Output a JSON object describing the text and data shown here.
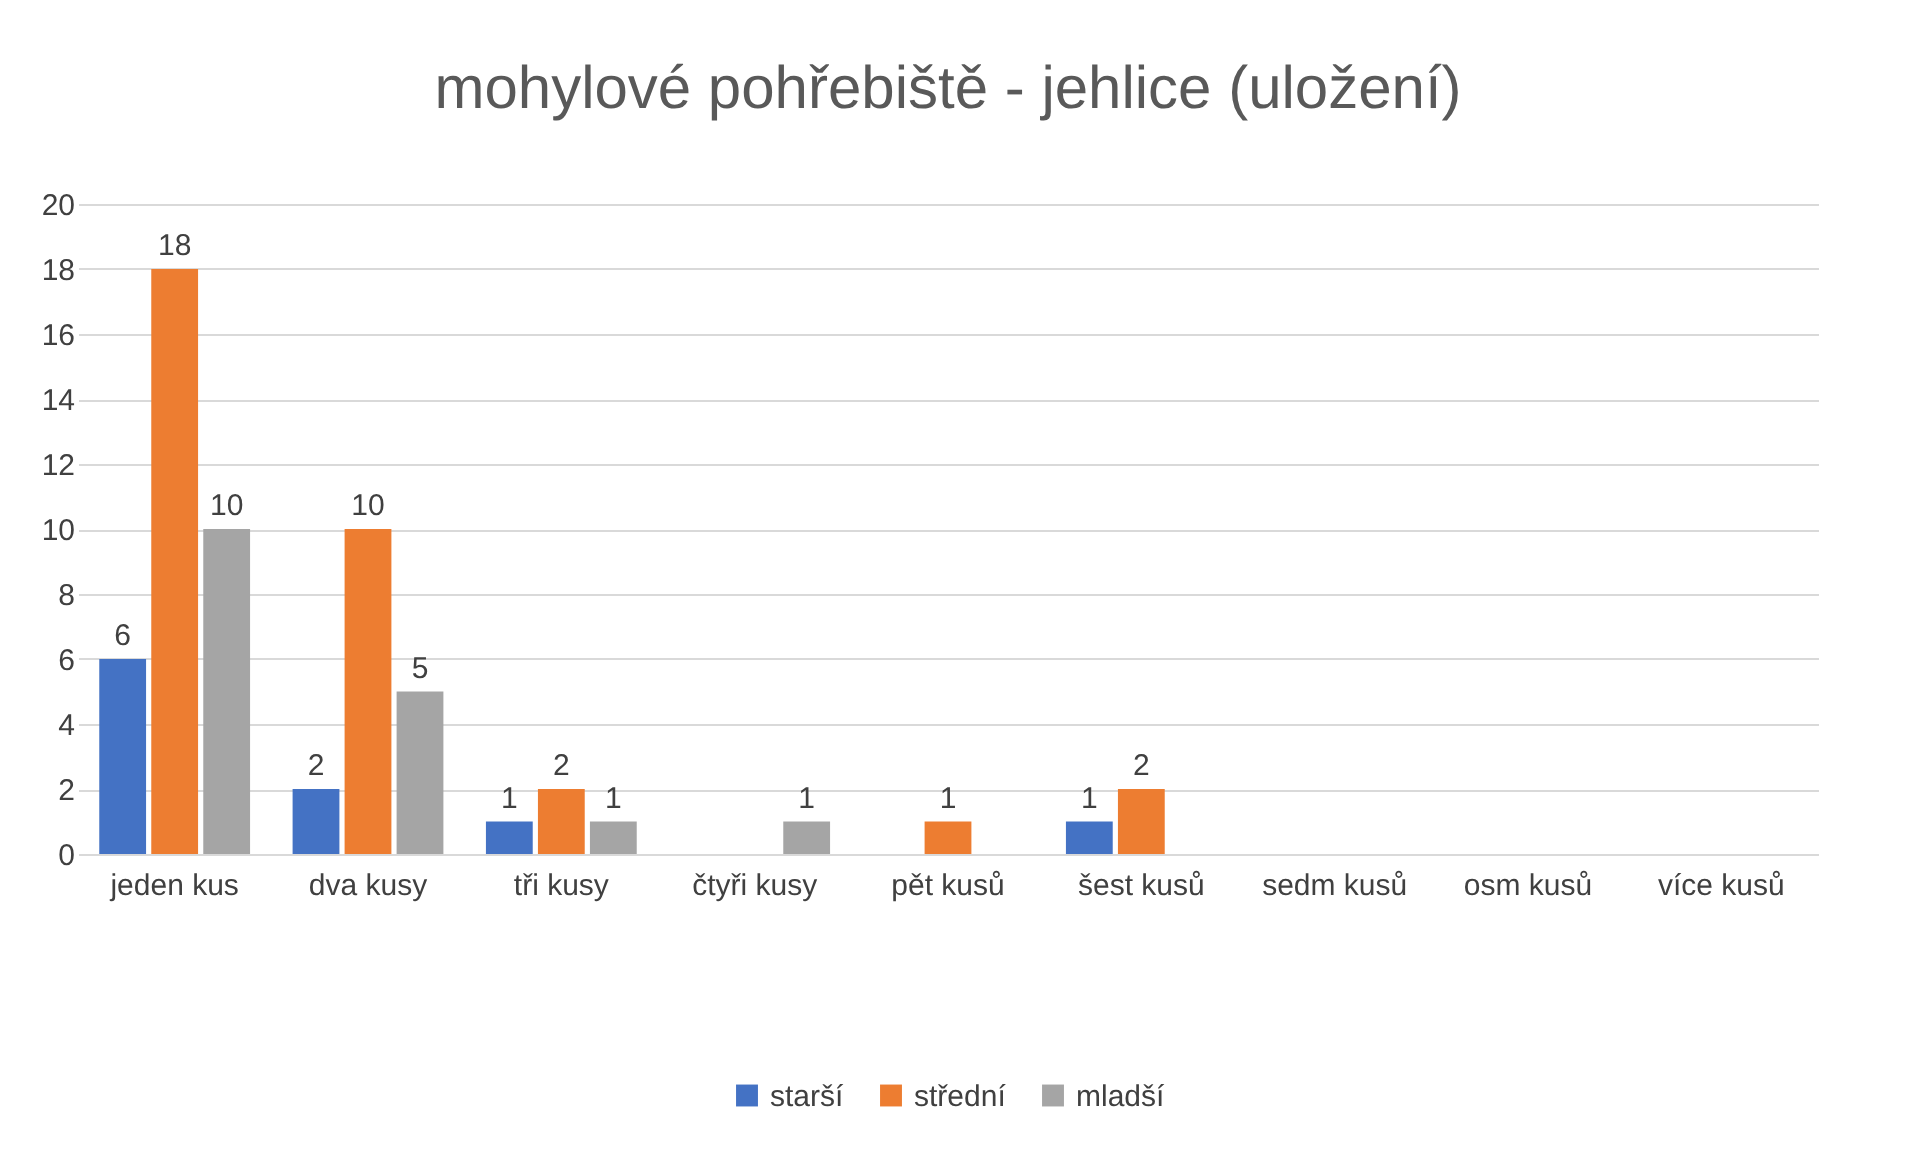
{
  "chart_data": {
    "type": "bar",
    "title": "mohylové pohřebiště - jehlice (uložení)",
    "categories": [
      "jeden kus",
      "dva kusy",
      "tři kusy",
      "čtyři kusy",
      "pět kusů",
      "šest kusů",
      "sedm kusů",
      "osm kusů",
      "více kusů"
    ],
    "series": [
      {
        "name": "starší",
        "color": "#4472c4",
        "values": [
          6,
          2,
          1,
          null,
          null,
          1,
          null,
          null,
          null
        ]
      },
      {
        "name": "střední",
        "color": "#ed7d31",
        "values": [
          18,
          10,
          2,
          null,
          1,
          2,
          null,
          null,
          null
        ]
      },
      {
        "name": "mladší",
        "color": "#a5a5a5",
        "values": [
          10,
          5,
          1,
          1,
          null,
          null,
          null,
          null,
          null
        ]
      }
    ],
    "ylim": [
      0,
      20
    ],
    "yticks": [
      0,
      2,
      4,
      6,
      8,
      10,
      12,
      14,
      16,
      18,
      20
    ],
    "grid": "y",
    "legend": "bottom",
    "data_labels": true
  }
}
